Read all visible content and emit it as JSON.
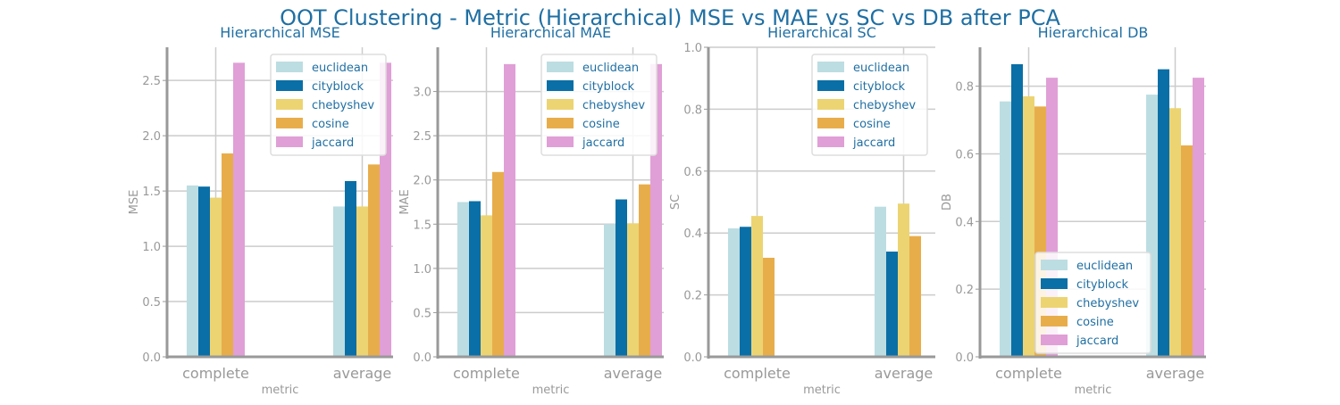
{
  "suptitle": "OOT Clustering - Metric (Hierarchical) MSE vs MAE vs SC vs DB after PCA",
  "colors": {
    "title": "#1f6fa3",
    "label_gray": "#999999",
    "grid": "#cccccc",
    "axis": "#999999",
    "legend_text": "#1f6fa3",
    "series": [
      "#bcdde2",
      "#0a6fa6",
      "#ecd472",
      "#e8ad4b",
      "#e09fd6"
    ]
  },
  "chart_data": [
    {
      "type": "bar",
      "title": "Hierarchical MSE",
      "xlabel": "metric",
      "ylabel": "MSE",
      "categories": [
        "complete",
        "average"
      ],
      "ylim": [
        0,
        2.8
      ],
      "yticks": [
        0.0,
        0.5,
        1.0,
        1.5,
        2.0,
        2.5
      ],
      "ytick_labels": [
        "0.0",
        "0.5",
        "1.0",
        "1.5",
        "2.0",
        "2.5"
      ],
      "grid": true,
      "legend_position": "upper right",
      "series": [
        {
          "name": "euclidean",
          "values": [
            1.55,
            1.36
          ]
        },
        {
          "name": "cityblock",
          "values": [
            1.54,
            1.59
          ]
        },
        {
          "name": "chebyshev",
          "values": [
            1.44,
            1.36
          ]
        },
        {
          "name": "cosine",
          "values": [
            1.84,
            1.74
          ]
        },
        {
          "name": "jaccard",
          "values": [
            2.66,
            2.66
          ]
        }
      ]
    },
    {
      "type": "bar",
      "title": "Hierarchical MAE",
      "xlabel": "metric",
      "ylabel": "MAE",
      "categories": [
        "complete",
        "average"
      ],
      "ylim": [
        0,
        3.5
      ],
      "yticks": [
        0.0,
        0.5,
        1.0,
        1.5,
        2.0,
        2.5,
        3.0
      ],
      "ytick_labels": [
        "0.0",
        "0.5",
        "1.0",
        "1.5",
        "2.0",
        "2.5",
        "3.0"
      ],
      "grid": true,
      "legend_position": "upper right",
      "series": [
        {
          "name": "euclidean",
          "values": [
            1.75,
            1.5
          ]
        },
        {
          "name": "cityblock",
          "values": [
            1.76,
            1.78
          ]
        },
        {
          "name": "chebyshev",
          "values": [
            1.6,
            1.51
          ]
        },
        {
          "name": "cosine",
          "values": [
            2.09,
            1.95
          ]
        },
        {
          "name": "jaccard",
          "values": [
            3.31,
            3.31
          ]
        }
      ]
    },
    {
      "type": "bar",
      "title": "Hierarchical SC",
      "xlabel": "metric",
      "ylabel": "SC",
      "categories": [
        "complete",
        "average"
      ],
      "ylim": [
        0,
        1.0
      ],
      "yticks": [
        0.0,
        0.2,
        0.4,
        0.6,
        0.8,
        1.0
      ],
      "ytick_labels": [
        "0.0",
        "0.2",
        "0.4",
        "0.6",
        "0.8",
        "1.0"
      ],
      "grid": true,
      "legend_position": "upper right",
      "series": [
        {
          "name": "euclidean",
          "values": [
            0.415,
            0.485
          ]
        },
        {
          "name": "cityblock",
          "values": [
            0.42,
            0.34
          ]
        },
        {
          "name": "chebyshev",
          "values": [
            0.455,
            0.495
          ]
        },
        {
          "name": "cosine",
          "values": [
            0.32,
            0.39
          ]
        },
        {
          "name": "jaccard",
          "values": [
            0.0,
            0.0
          ]
        }
      ]
    },
    {
      "type": "bar",
      "title": "Hierarchical DB",
      "xlabel": "metric",
      "ylabel": "DB",
      "categories": [
        "complete",
        "average"
      ],
      "ylim": [
        0,
        0.915
      ],
      "yticks": [
        0.0,
        0.2,
        0.4,
        0.6,
        0.8
      ],
      "ytick_labels": [
        "0.0",
        "0.2",
        "0.4",
        "0.6",
        "0.8"
      ],
      "grid": true,
      "legend_position": "lower right",
      "series": [
        {
          "name": "euclidean",
          "values": [
            0.755,
            0.775
          ]
        },
        {
          "name": "cityblock",
          "values": [
            0.865,
            0.85
          ]
        },
        {
          "name": "chebyshev",
          "values": [
            0.77,
            0.735
          ]
        },
        {
          "name": "cosine",
          "values": [
            0.74,
            0.625
          ]
        },
        {
          "name": "jaccard",
          "values": [
            0.825,
            0.825
          ]
        }
      ]
    }
  ]
}
